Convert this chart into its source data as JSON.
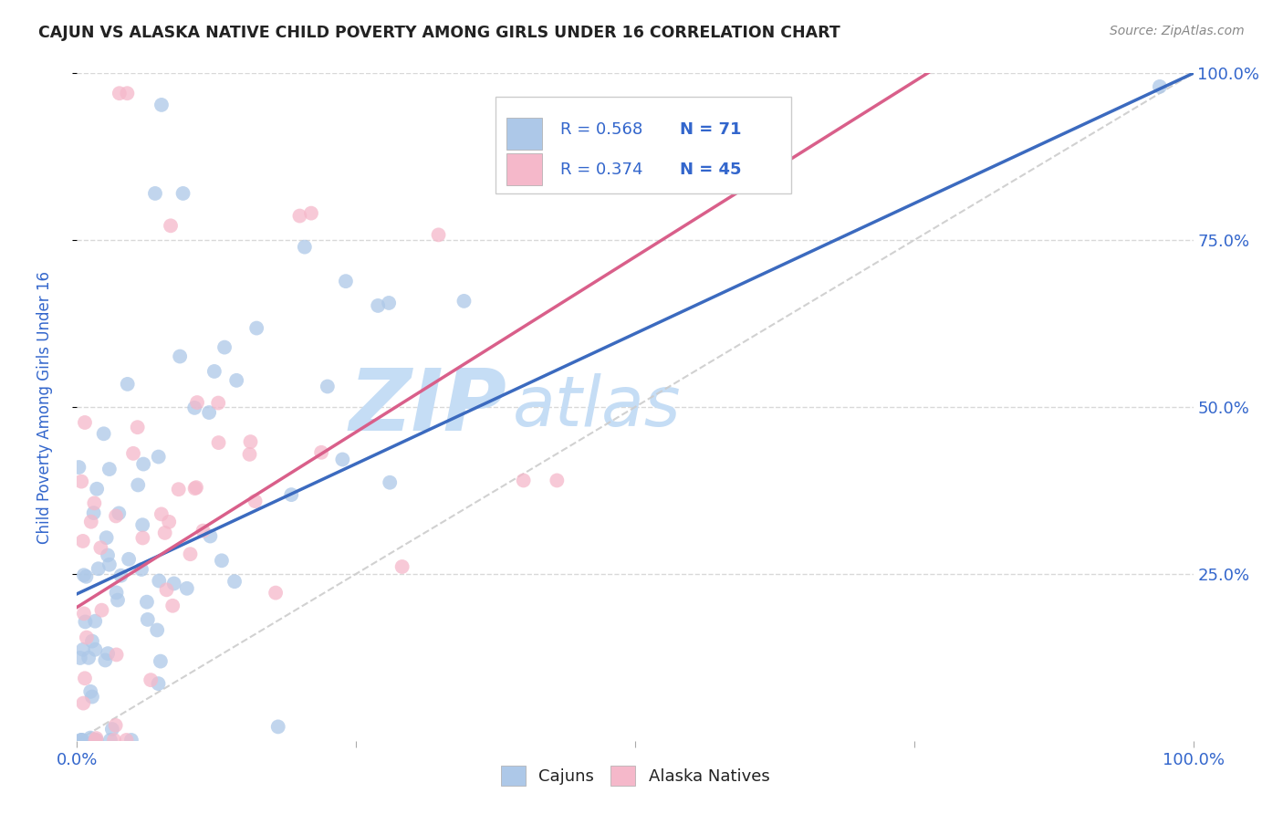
{
  "title": "CAJUN VS ALASKA NATIVE CHILD POVERTY AMONG GIRLS UNDER 16 CORRELATION CHART",
  "source": "Source: ZipAtlas.com",
  "ylabel": "Child Poverty Among Girls Under 16",
  "cajun_R": 0.568,
  "cajun_N": 71,
  "alaska_R": 0.374,
  "alaska_N": 45,
  "cajun_color": "#adc8e8",
  "alaska_color": "#f5b8ca",
  "cajun_line_color": "#3b6abf",
  "alaska_line_color": "#d95f8a",
  "diagonal_color": "#cccccc",
  "legend_text_color": "#3366cc",
  "title_color": "#222222",
  "source_color": "#888888",
  "axis_label_color": "#3366cc",
  "tick_color": "#3366cc",
  "background_color": "#ffffff",
  "grid_color": "#d8d8d8",
  "watermark_zip_color": "#c5ddf5",
  "watermark_atlas_color": "#c5ddf5"
}
